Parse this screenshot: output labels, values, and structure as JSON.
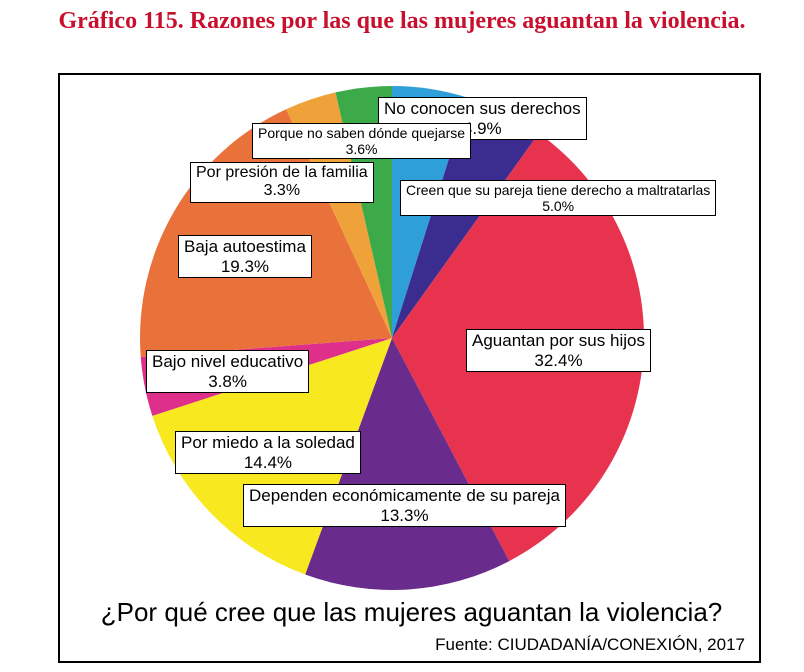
{
  "title": "Gráfico 115. Razones por las que las mujeres aguantan la violencia.",
  "question": "¿Por qué cree que las mujeres aguantan la violencia?",
  "source": "Fuente: CIUDADANÍA/CONEXIÓN, 2017",
  "chart_data": {
    "type": "pie",
    "title": "¿Por qué cree que las mujeres aguantan la violencia?",
    "slices": [
      {
        "label": "No conocen sus derechos",
        "value": 4.9,
        "display": "4.9%",
        "color": "#2e9fd8"
      },
      {
        "label": "Creen que su pareja tiene derecho a maltratarlas",
        "value": 5.0,
        "display": "5.0%",
        "color": "#3b2d8f"
      },
      {
        "label": "Aguantan por sus hijos",
        "value": 32.4,
        "display": "32.4%",
        "color": "#e8334f"
      },
      {
        "label": "Dependen económicamente de su pareja",
        "value": 13.3,
        "display": "13.3%",
        "color": "#6a2c8c"
      },
      {
        "label": "Por miedo a la soledad",
        "value": 14.4,
        "display": "14.4%",
        "color": "#f8e81f"
      },
      {
        "label": "Bajo nivel educativo",
        "value": 3.8,
        "display": "3.8%",
        "color": "#de2f8a"
      },
      {
        "label": "Baja autoestima",
        "value": 19.3,
        "display": "19.3%",
        "color": "#e9723a"
      },
      {
        "label": "Por presión de la familia",
        "value": 3.3,
        "display": "3.3%",
        "color": "#f0a23a"
      },
      {
        "label": "Porque no saben dónde quejarse",
        "value": 3.6,
        "display": "3.6%",
        "color": "#3daa4a"
      }
    ]
  }
}
